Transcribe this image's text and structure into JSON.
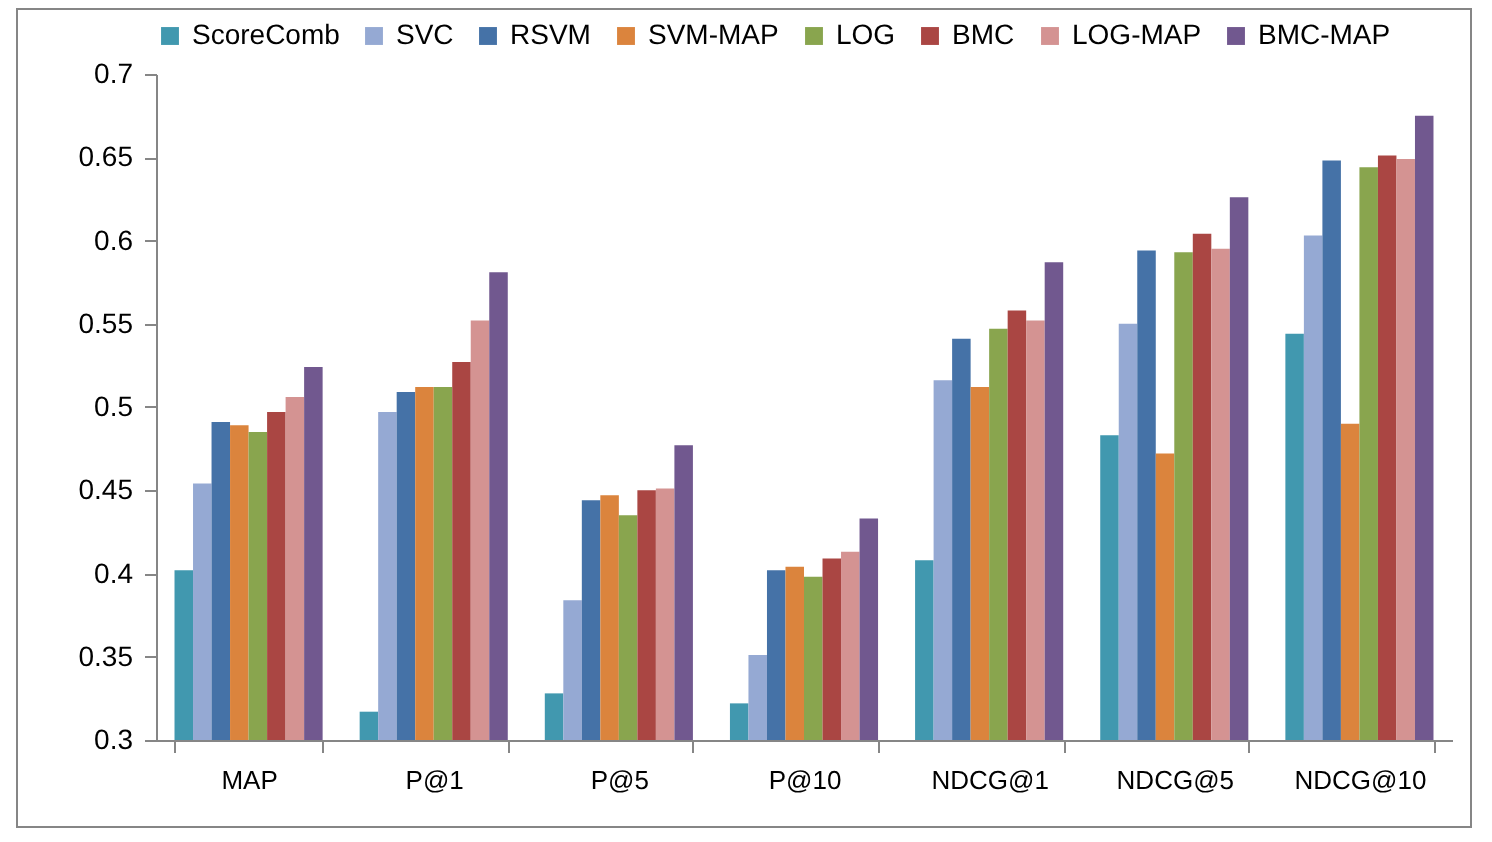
{
  "chart_data": {
    "type": "bar",
    "categories": [
      "MAP",
      "P@1",
      "P@5",
      "P@10",
      "NDCG@1",
      "NDCG@5",
      "NDCG@10"
    ],
    "series": [
      {
        "name": "ScoreComb",
        "color": "#4198af",
        "values": [
          0.402,
          0.317,
          0.328,
          0.322,
          0.408,
          0.483,
          0.544
        ]
      },
      {
        "name": "SVC",
        "color": "#95a9d3",
        "values": [
          0.454,
          0.497,
          0.384,
          0.351,
          0.516,
          0.55,
          0.603
        ]
      },
      {
        "name": "RSVM",
        "color": "#4572a7",
        "values": [
          0.491,
          0.509,
          0.444,
          0.402,
          0.541,
          0.594,
          0.648
        ]
      },
      {
        "name": "SVM-MAP",
        "color": "#db843d",
        "values": [
          0.489,
          0.512,
          0.447,
          0.404,
          0.512,
          0.472,
          0.49
        ]
      },
      {
        "name": "LOG",
        "color": "#89a54e",
        "values": [
          0.485,
          0.512,
          0.435,
          0.398,
          0.547,
          0.593,
          0.644
        ]
      },
      {
        "name": "BMC",
        "color": "#aa4643",
        "values": [
          0.497,
          0.527,
          0.45,
          0.409,
          0.558,
          0.604,
          0.651
        ]
      },
      {
        "name": "LOG-MAP",
        "color": "#d49392",
        "values": [
          0.506,
          0.552,
          0.451,
          0.413,
          0.552,
          0.595,
          0.649
        ]
      },
      {
        "name": "BMC-MAP",
        "color": "#71588f",
        "values": [
          0.524,
          0.581,
          0.477,
          0.433,
          0.587,
          0.626,
          0.675
        ]
      }
    ],
    "ylim": [
      0.3,
      0.7
    ],
    "yticks": [
      0.3,
      0.35,
      0.4,
      0.45,
      0.5,
      0.55,
      0.6,
      0.65,
      0.7
    ],
    "grid": false,
    "legend": "top"
  }
}
